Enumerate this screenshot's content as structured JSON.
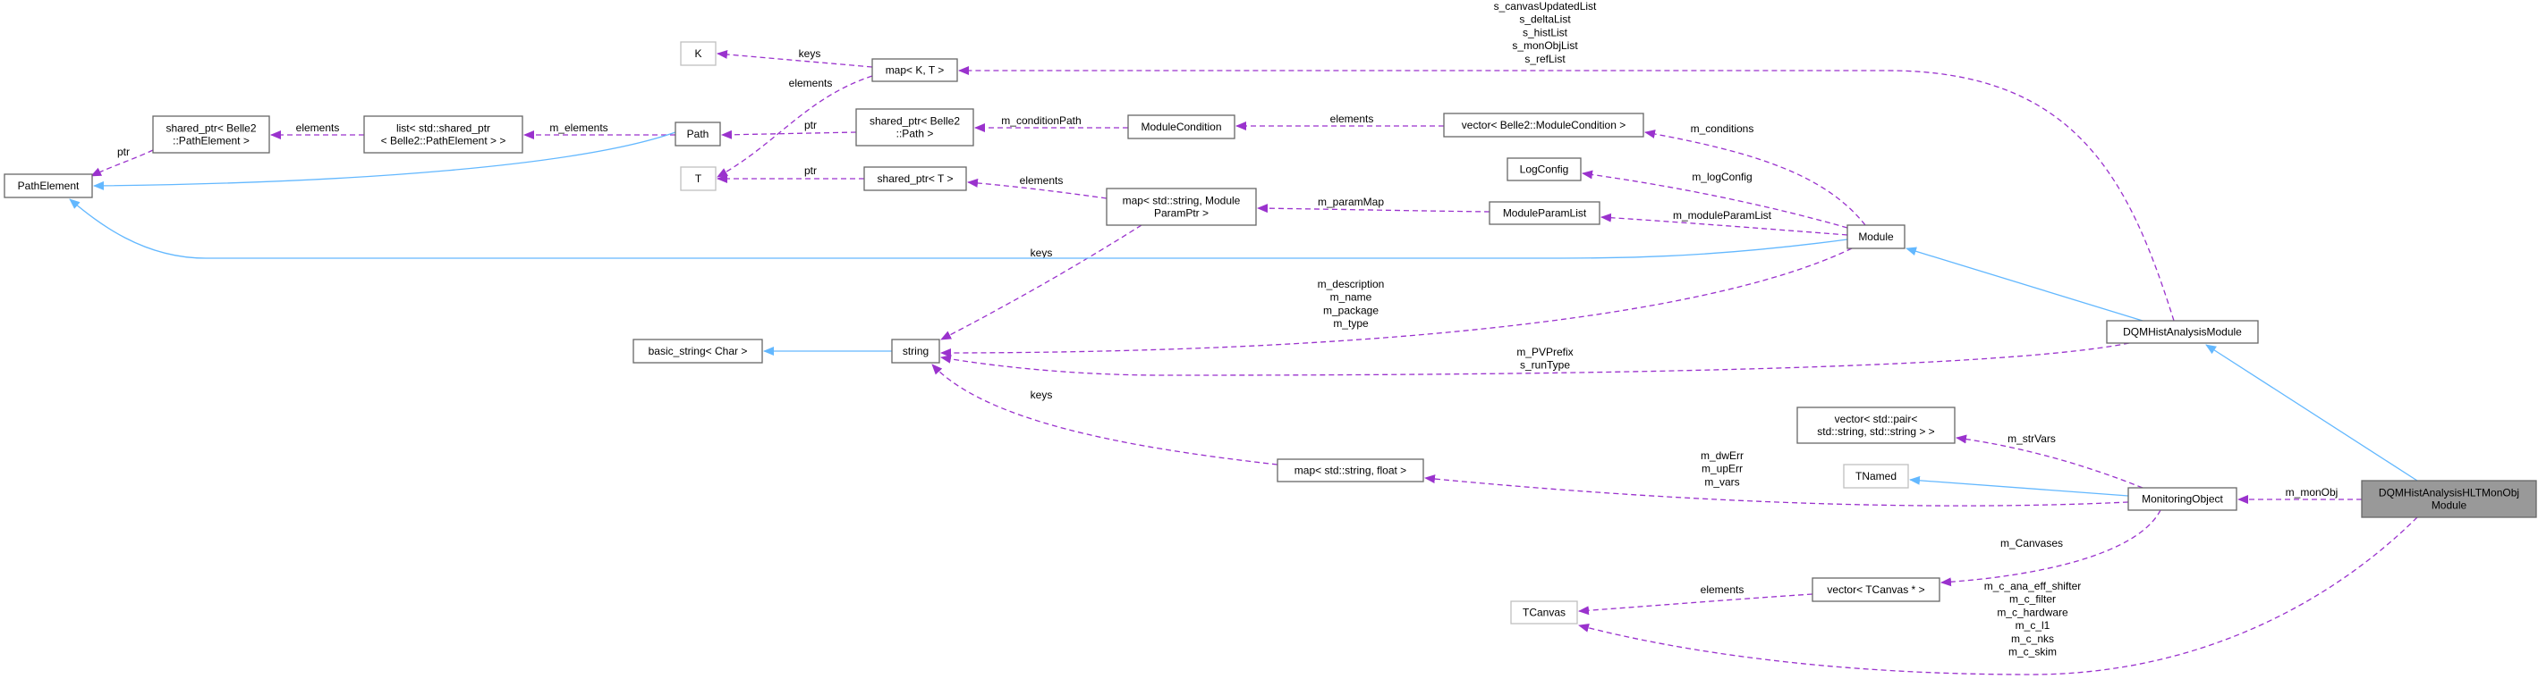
{
  "colors": {
    "usage_edge": "#9a32cd",
    "inheritance_edge": "#63b8ff",
    "focus_fill": "#999999",
    "undocumented_border": "#bfbfbf"
  },
  "nodes": [
    {
      "id": "PathElement",
      "lines": [
        "PathElement"
      ],
      "style": "normal"
    },
    {
      "id": "sp_PathElement",
      "lines": [
        "shared_ptr< Belle2",
        "::PathElement >"
      ],
      "style": "normal"
    },
    {
      "id": "list_sp",
      "lines": [
        "list< std::shared_ptr",
        "< Belle2::PathElement > >"
      ],
      "style": "normal"
    },
    {
      "id": "Path",
      "lines": [
        "Path"
      ],
      "style": "normal"
    },
    {
      "id": "K",
      "lines": [
        "K"
      ],
      "style": "undocumented"
    },
    {
      "id": "T",
      "lines": [
        "T"
      ],
      "style": "undocumented"
    },
    {
      "id": "mapKT",
      "lines": [
        "map< K, T >"
      ],
      "style": "normal"
    },
    {
      "id": "sp_Path",
      "lines": [
        "shared_ptr< Belle2",
        "::Path >"
      ],
      "style": "normal"
    },
    {
      "id": "sp_T",
      "lines": [
        "shared_ptr< T >"
      ],
      "style": "normal"
    },
    {
      "id": "ModuleCondition",
      "lines": [
        "ModuleCondition"
      ],
      "style": "normal"
    },
    {
      "id": "vec_ModCond",
      "lines": [
        "vector< Belle2::ModuleCondition >"
      ],
      "style": "normal"
    },
    {
      "id": "LogConfig",
      "lines": [
        "LogConfig"
      ],
      "style": "normal"
    },
    {
      "id": "map_ParamPtr",
      "lines": [
        "map< std::string, Module",
        "ParamPtr >"
      ],
      "style": "normal"
    },
    {
      "id": "ModuleParamList",
      "lines": [
        "ModuleParamList"
      ],
      "style": "normal"
    },
    {
      "id": "Module",
      "lines": [
        "Module"
      ],
      "style": "normal"
    },
    {
      "id": "basic_string",
      "lines": [
        "basic_string< Char >"
      ],
      "style": "normal"
    },
    {
      "id": "string",
      "lines": [
        "string"
      ],
      "style": "normal"
    },
    {
      "id": "DQMHistAnalysisModule",
      "lines": [
        "DQMHistAnalysisModule"
      ],
      "style": "normal"
    },
    {
      "id": "vec_pair",
      "lines": [
        "vector< std::pair<",
        "std::string, std::string > >"
      ],
      "style": "normal"
    },
    {
      "id": "TNamed",
      "lines": [
        "TNamed"
      ],
      "style": "undocumented"
    },
    {
      "id": "map_float",
      "lines": [
        "map< std::string, float >"
      ],
      "style": "normal"
    },
    {
      "id": "MonitoringObject",
      "lines": [
        "MonitoringObject"
      ],
      "style": "normal"
    },
    {
      "id": "vec_TCanvas",
      "lines": [
        "vector< TCanvas * >"
      ],
      "style": "normal"
    },
    {
      "id": "TCanvas",
      "lines": [
        "TCanvas"
      ],
      "style": "undocumented"
    },
    {
      "id": "HLTMonObj",
      "lines": [
        "DQMHistAnalysisHLTMonObj",
        "Module"
      ],
      "style": "focus"
    }
  ],
  "edges": [
    {
      "from": "sp_PathElement",
      "to": "PathElement",
      "kind": "usage",
      "labels": [
        "ptr"
      ]
    },
    {
      "from": "list_sp",
      "to": "sp_PathElement",
      "kind": "usage",
      "labels": [
        "elements"
      ]
    },
    {
      "from": "Path",
      "to": "list_sp",
      "kind": "usage",
      "labels": [
        "m_elements"
      ]
    },
    {
      "from": "Path",
      "to": "PathElement",
      "kind": "inheritance",
      "labels": []
    },
    {
      "from": "mapKT",
      "to": "K",
      "kind": "usage",
      "labels": [
        "keys"
      ]
    },
    {
      "from": "mapKT",
      "to": "T",
      "kind": "usage",
      "labels": [
        "elements"
      ]
    },
    {
      "from": "sp_Path",
      "to": "Path",
      "kind": "usage",
      "labels": [
        "ptr"
      ]
    },
    {
      "from": "sp_T",
      "to": "T",
      "kind": "usage",
      "labels": [
        "ptr"
      ]
    },
    {
      "from": "ModuleCondition",
      "to": "sp_Path",
      "kind": "usage",
      "labels": [
        "m_conditionPath"
      ]
    },
    {
      "from": "vec_ModCond",
      "to": "ModuleCondition",
      "kind": "usage",
      "labels": [
        "elements"
      ]
    },
    {
      "from": "map_ParamPtr",
      "to": "sp_T",
      "kind": "usage",
      "labels": [
        "elements"
      ]
    },
    {
      "from": "ModuleParamList",
      "to": "map_ParamPtr",
      "kind": "usage",
      "labels": [
        "m_paramMap"
      ]
    },
    {
      "from": "map_ParamPtr",
      "to": "string",
      "kind": "usage",
      "labels": [
        "keys"
      ]
    },
    {
      "from": "Module",
      "to": "vec_ModCond",
      "kind": "usage",
      "labels": [
        "m_conditions"
      ]
    },
    {
      "from": "Module",
      "to": "LogConfig",
      "kind": "usage",
      "labels": [
        "m_logConfig"
      ]
    },
    {
      "from": "Module",
      "to": "ModuleParamList",
      "kind": "usage",
      "labels": [
        "m_moduleParamList"
      ]
    },
    {
      "from": "Module",
      "to": "PathElement",
      "kind": "inheritance",
      "labels": []
    },
    {
      "from": "Module",
      "to": "string",
      "kind": "usage",
      "labels": [
        "m_description",
        "m_name",
        "m_package",
        "m_type"
      ]
    },
    {
      "from": "DQMHistAnalysisModule",
      "to": "Module",
      "kind": "inheritance",
      "labels": []
    },
    {
      "from": "DQMHistAnalysisModule",
      "to": "mapKT",
      "kind": "usage",
      "labels": [
        "s_canvasUpdatedList",
        "s_deltaList",
        "s_histList",
        "s_monObjList",
        "s_refList"
      ]
    },
    {
      "from": "DQMHistAnalysisModule",
      "to": "string",
      "kind": "usage",
      "labels": [
        "m_PVPrefix",
        "s_runType"
      ]
    },
    {
      "from": "string",
      "to": "basic_string",
      "kind": "inheritance",
      "labels": []
    },
    {
      "from": "map_float",
      "to": "string",
      "kind": "usage",
      "labels": [
        "keys"
      ]
    },
    {
      "from": "MonitoringObject",
      "to": "map_float",
      "kind": "usage",
      "labels": [
        "m_dwErr",
        "m_upErr",
        "m_vars"
      ]
    },
    {
      "from": "MonitoringObject",
      "to": "vec_pair",
      "kind": "usage",
      "labels": [
        "m_strVars"
      ]
    },
    {
      "from": "MonitoringObject",
      "to": "TNamed",
      "kind": "inheritance",
      "labels": []
    },
    {
      "from": "MonitoringObject",
      "to": "vec_TCanvas",
      "kind": "usage",
      "labels": [
        "m_Canvases"
      ]
    },
    {
      "from": "vec_TCanvas",
      "to": "TCanvas",
      "kind": "usage",
      "labels": [
        "elements"
      ]
    },
    {
      "from": "HLTMonObj",
      "to": "MonitoringObject",
      "kind": "usage",
      "labels": [
        "m_monObj"
      ]
    },
    {
      "from": "HLTMonObj",
      "to": "DQMHistAnalysisModule",
      "kind": "inheritance",
      "labels": []
    },
    {
      "from": "HLTMonObj",
      "to": "TCanvas",
      "kind": "usage",
      "labels": [
        "m_c_ana_eff_shifter",
        "m_c_filter",
        "m_c_hardware",
        "m_c_l1",
        "m_c_nks",
        "m_c_skim"
      ]
    }
  ]
}
